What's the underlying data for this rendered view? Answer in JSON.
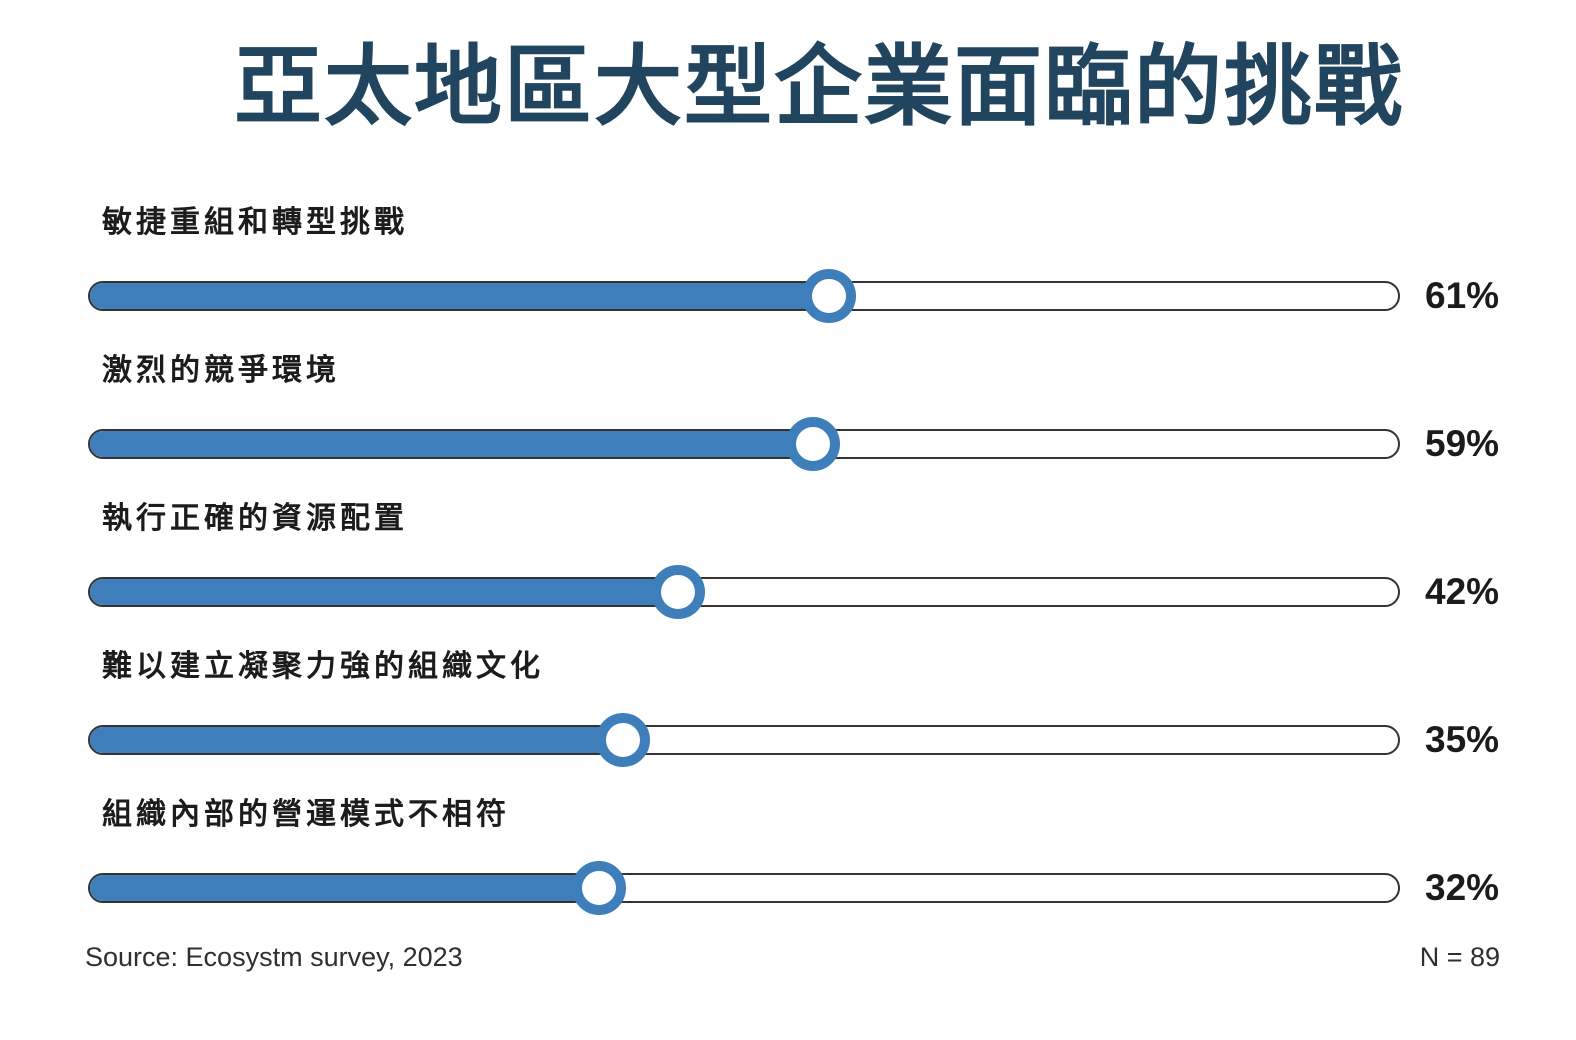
{
  "title": "亞太地區大型企業面臨的挑戰",
  "chart_data": {
    "type": "bar",
    "variant": "horizontal-slider-progress",
    "title": "亞太地區大型企業面臨的挑戰",
    "categories": [
      "敏捷重組和轉型挑戰",
      "激烈的競爭環境",
      "執行正確的資源配置",
      "難以建立凝聚力強的組織文化",
      "組織內部的營運模式不相符"
    ],
    "values": [
      61,
      59,
      42,
      35,
      32
    ],
    "value_labels": [
      "61%",
      "59%",
      "42%",
      "35%",
      "32%"
    ],
    "xlim": [
      0,
      100
    ],
    "orientation": "horizontal",
    "grid": false,
    "legend": false,
    "colors": {
      "accent": "#3E7FBB",
      "track_outline": "#333333",
      "track_background": "#FFFFFF",
      "title": "#21455E",
      "category_label": "#1C1C1C",
      "value_label": "#1B1B1B"
    }
  },
  "footer": {
    "source": "Source: Ecosystm survey, 2023",
    "sample_size": "N = 89"
  }
}
